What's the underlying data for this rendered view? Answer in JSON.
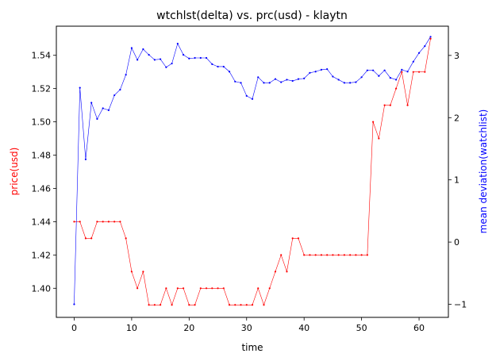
{
  "chart_data": {
    "type": "line",
    "title": "wtchlst(delta) vs. prc(usd) - klaytn",
    "xlabel": "time",
    "ylabel_left": "price(usd)",
    "ylabel_right": "mean deviation(watchlist)",
    "xlim": [
      -3.1,
      65.1
    ],
    "ylim_left": [
      1.3825,
      1.5575
    ],
    "ylim_right": [
      -1.21,
      3.47
    ],
    "x_ticks": [
      0,
      10,
      20,
      30,
      40,
      50,
      60
    ],
    "y_left_ticks": [
      1.4,
      1.42,
      1.44,
      1.46,
      1.48,
      1.5,
      1.52,
      1.54
    ],
    "y_left_tick_labels": [
      "1.40",
      "1.42",
      "1.44",
      "1.46",
      "1.48",
      "1.50",
      "1.52",
      "1.54"
    ],
    "y_right_ticks": [
      -1,
      0,
      1,
      2,
      3
    ],
    "grid": false,
    "legend": "none",
    "colors": {
      "price": "#ff0000",
      "deviation": "#0000ff",
      "left_label": "#ff0000",
      "right_label": "#0000ff"
    },
    "series": [
      {
        "axis": "left",
        "x": [
          0,
          1,
          2,
          3,
          4,
          5,
          6,
          7,
          8,
          9,
          10,
          11,
          12,
          13,
          14,
          15,
          16,
          17,
          18,
          19,
          20,
          21,
          22,
          23,
          24,
          25,
          26,
          27,
          28,
          29,
          30,
          31,
          32,
          33,
          34,
          35,
          36,
          37,
          38,
          39,
          40,
          41,
          42,
          43,
          44,
          45,
          46,
          47,
          48,
          49,
          50,
          51,
          52,
          53,
          54,
          55,
          56,
          57,
          58,
          59,
          60,
          61,
          62
        ],
        "values": [
          1.44,
          1.44,
          1.43,
          1.43,
          1.44,
          1.44,
          1.44,
          1.44,
          1.44,
          1.43,
          1.41,
          1.4,
          1.41,
          1.39,
          1.39,
          1.39,
          1.4,
          1.39,
          1.4,
          1.4,
          1.39,
          1.39,
          1.4,
          1.4,
          1.4,
          1.4,
          1.4,
          1.39,
          1.39,
          1.39,
          1.39,
          1.39,
          1.4,
          1.39,
          1.4,
          1.41,
          1.42,
          1.41,
          1.43,
          1.43,
          1.42,
          1.42,
          1.42,
          1.42,
          1.42,
          1.42,
          1.42,
          1.42,
          1.42,
          1.42,
          1.42,
          1.42,
          1.5,
          1.49,
          1.51,
          1.51,
          1.52,
          1.53,
          1.51,
          1.53,
          1.53,
          1.53,
          1.55
        ]
      },
      {
        "axis": "right",
        "x": [
          0,
          1,
          2,
          3,
          4,
          5,
          6,
          7,
          8,
          9,
          10,
          11,
          12,
          13,
          14,
          15,
          16,
          17,
          18,
          19,
          20,
          21,
          22,
          23,
          24,
          25,
          26,
          27,
          28,
          29,
          30,
          31,
          32,
          33,
          34,
          35,
          36,
          37,
          38,
          39,
          40,
          41,
          42,
          43,
          44,
          45,
          46,
          47,
          48,
          49,
          50,
          51,
          52,
          53,
          54,
          55,
          56,
          57,
          58,
          59,
          60,
          61,
          62
        ],
        "values": [
          -1.0,
          2.48,
          1.33,
          2.24,
          1.98,
          2.15,
          2.12,
          2.36,
          2.45,
          2.69,
          3.12,
          2.93,
          3.1,
          3.01,
          2.93,
          2.94,
          2.81,
          2.87,
          3.19,
          3.01,
          2.95,
          2.96,
          2.96,
          2.96,
          2.86,
          2.82,
          2.82,
          2.74,
          2.58,
          2.56,
          2.35,
          2.3,
          2.65,
          2.56,
          2.56,
          2.62,
          2.57,
          2.61,
          2.59,
          2.62,
          2.63,
          2.72,
          2.74,
          2.77,
          2.78,
          2.66,
          2.61,
          2.56,
          2.56,
          2.57,
          2.65,
          2.76,
          2.76,
          2.67,
          2.76,
          2.64,
          2.61,
          2.77,
          2.74,
          2.9,
          3.04,
          3.15,
          3.3
        ]
      }
    ]
  }
}
